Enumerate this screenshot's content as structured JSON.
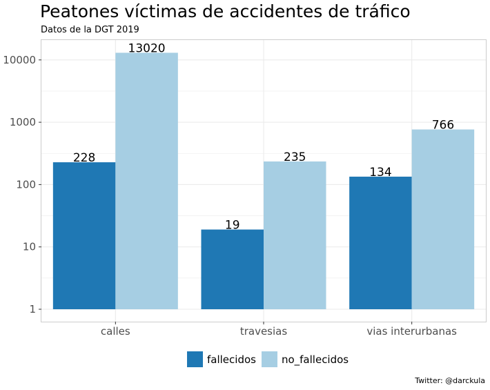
{
  "header": {
    "title": "Peatones víctimas de accidentes de tráfico",
    "subtitle": "Datos de la DGT 2019"
  },
  "caption": "Twitter: @darckula",
  "colors": {
    "fallecidos": "#1f78b4",
    "no_fallecidos": "#a6cee3",
    "grid": "#ebebeb",
    "panel_border": "#cccccc",
    "tick_text": "#4d4d4d"
  },
  "chart_data": {
    "type": "bar",
    "title": "Peatones víctimas de accidentes de tráfico",
    "subtitle": "Datos de la DGT 2019",
    "xlabel": "",
    "ylabel": "",
    "yscale": "log10",
    "ylim": [
      1,
      13020
    ],
    "yticks": [
      1,
      10,
      100,
      1000,
      10000
    ],
    "ytick_labels": [
      "1",
      "10",
      "100",
      "1000",
      "10000"
    ],
    "categories": [
      "calles",
      "travesias",
      "vias interurbanas"
    ],
    "series": [
      {
        "name": "fallecidos",
        "color": "#1f78b4",
        "values": [
          228,
          19,
          134
        ],
        "labels": [
          "228",
          "19",
          "134"
        ]
      },
      {
        "name": "no_fallecidos",
        "color": "#a6cee3",
        "values": [
          13020,
          235,
          766
        ],
        "labels": [
          "13020",
          "235",
          "766"
        ]
      }
    ],
    "legend_position": "bottom",
    "grid": true
  }
}
